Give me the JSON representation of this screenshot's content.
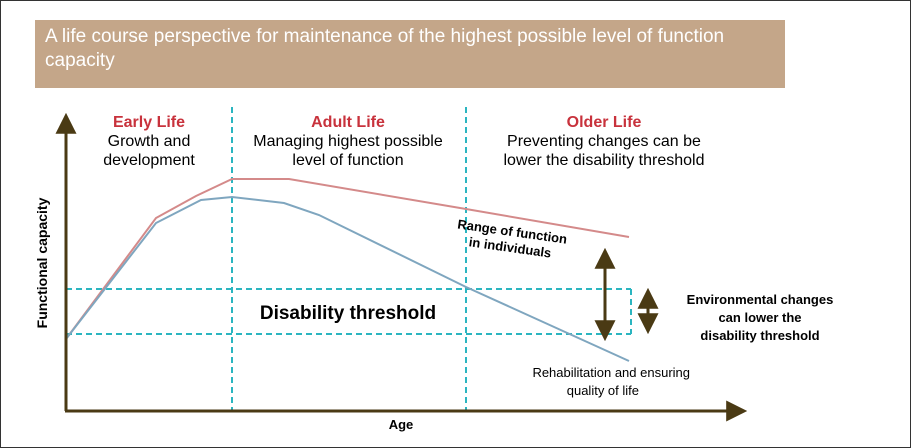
{
  "header": {
    "title": "A life course perspective for maintenance of the highest possible level of function capacity"
  },
  "sections": [
    {
      "heading": "Early Life",
      "description": [
        "Growth and",
        "development"
      ]
    },
    {
      "heading": "Adult Life",
      "description": [
        "Managing highest possible",
        "level of function"
      ]
    },
    {
      "heading": "Older Life",
      "description": [
        "Preventing changes can be",
        "lower the disability threshold"
      ]
    }
  ],
  "axes": {
    "y_label": "Functional capacity",
    "x_label": "Age"
  },
  "annotations": {
    "range": [
      "Range of function",
      "in individuals"
    ],
    "threshold": "Disability threshold",
    "environment": [
      "Environmental changes",
      "can lower the",
      "disability threshold"
    ],
    "rehabilitation": [
      "Rehabilitation and ensuring",
      "quality of life"
    ]
  }
}
